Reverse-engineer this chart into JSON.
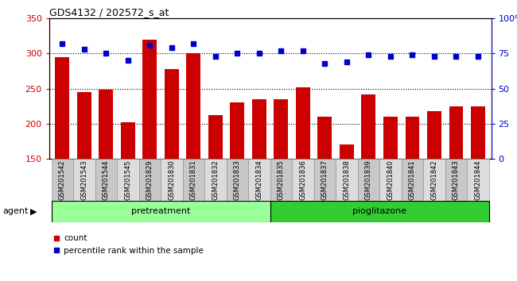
{
  "title": "GDS4132 / 202572_s_at",
  "samples": [
    "GSM201542",
    "GSM201543",
    "GSM201544",
    "GSM201545",
    "GSM201829",
    "GSM201830",
    "GSM201831",
    "GSM201832",
    "GSM201833",
    "GSM201834",
    "GSM201835",
    "GSM201836",
    "GSM201837",
    "GSM201838",
    "GSM201839",
    "GSM201840",
    "GSM201841",
    "GSM201842",
    "GSM201843",
    "GSM201844"
  ],
  "counts": [
    295,
    245,
    248,
    202,
    320,
    278,
    300,
    212,
    230,
    235,
    235,
    252,
    210,
    170,
    242,
    210,
    210,
    218,
    225,
    225
  ],
  "percentile_ranks": [
    82,
    78,
    75,
    70,
    81,
    79,
    82,
    73,
    75,
    75,
    77,
    77,
    68,
    69,
    74,
    73,
    74,
    73,
    73,
    73
  ],
  "pretreatment_count": 10,
  "pioglitazone_count": 10,
  "bar_color": "#cc0000",
  "dot_color": "#0000cc",
  "pretreatment_color": "#99ff99",
  "pioglitazone_color": "#33cc33",
  "legend_count": "count",
  "legend_pct": "percentile rank within the sample",
  "ylim_left": [
    150,
    350
  ],
  "ylim_right": [
    0,
    100
  ],
  "yticks_left": [
    150,
    200,
    250,
    300,
    350
  ],
  "yticks_right": [
    0,
    25,
    50,
    75,
    100
  ],
  "grid_lines": [
    200,
    250,
    300
  ],
  "figsize": [
    6.5,
    3.54
  ],
  "dpi": 100
}
